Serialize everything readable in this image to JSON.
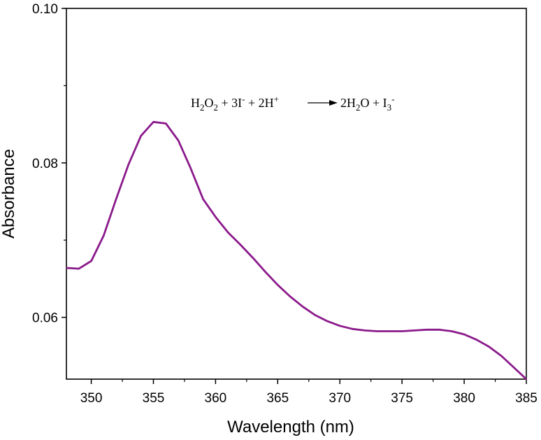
{
  "chart_data": {
    "type": "line",
    "title": "",
    "xlabel": "Wavelength (nm)",
    "ylabel": "Absorbance",
    "xlim": [
      348,
      385
    ],
    "ylim": [
      0.052,
      0.1
    ],
    "xticks": [
      350,
      355,
      360,
      365,
      370,
      375,
      380,
      385
    ],
    "yticks": [
      0.06,
      0.08,
      0.1
    ],
    "xtick_labels": [
      "350",
      "355",
      "360",
      "365",
      "370",
      "375",
      "380",
      "385"
    ],
    "ytick_labels": [
      "0.06",
      "0.08",
      "0.10"
    ],
    "grid": false,
    "line_color": "#8b1a8b",
    "annotation": {
      "parts": [
        "H",
        "2",
        "O",
        "2",
        " + 3I",
        "-",
        " + 2H",
        "+",
        "2H",
        "2",
        "O + I",
        "3",
        "-"
      ]
    },
    "series": [
      {
        "x": [
          348,
          349,
          350,
          351,
          352,
          353,
          354,
          355,
          356,
          357,
          358,
          359,
          360,
          361,
          362,
          363,
          364,
          365,
          366,
          367,
          368,
          369,
          370,
          371,
          372,
          373,
          374,
          375,
          376,
          377,
          378,
          379,
          380,
          381,
          382,
          383,
          384,
          385
        ],
        "values": [
          0.0664,
          0.0663,
          0.0673,
          0.0706,
          0.0753,
          0.0798,
          0.0835,
          0.0853,
          0.0851,
          0.0829,
          0.0793,
          0.0753,
          0.073,
          0.071,
          0.0694,
          0.0677,
          0.0659,
          0.0642,
          0.0627,
          0.0614,
          0.0603,
          0.0595,
          0.0589,
          0.0585,
          0.0583,
          0.0582,
          0.0582,
          0.0582,
          0.0583,
          0.0584,
          0.0584,
          0.0582,
          0.0578,
          0.0571,
          0.0562,
          0.055,
          0.0535,
          0.052
        ]
      }
    ]
  }
}
